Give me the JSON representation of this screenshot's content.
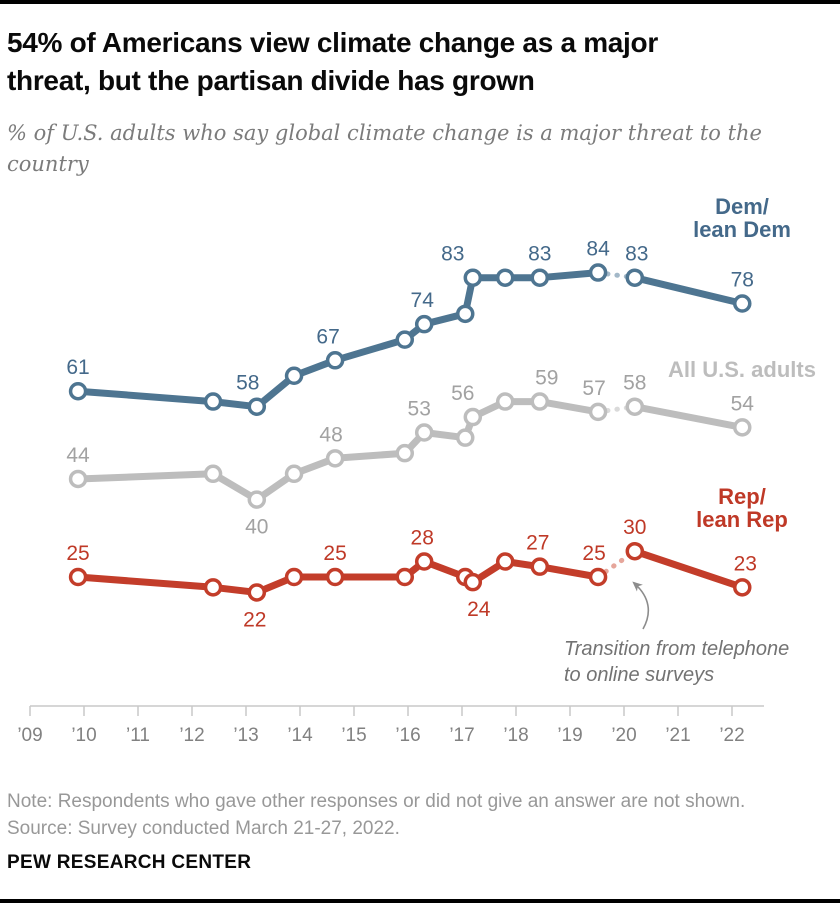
{
  "page": {
    "title_lines": [
      "54% of Americans view climate change as a major",
      "threat, but the partisan divide has grown"
    ],
    "subtitle_lines": [
      "% of U.S. adults who say global climate change is a major threat to the",
      "country"
    ],
    "note": "Note: Respondents who gave other responses or did not give an answer are not shown.",
    "source": "Source: Survey conducted March 21-27, 2022.",
    "brand": "PEW RESEARCH CENTER"
  },
  "chart_data": {
    "type": "line",
    "x": [
      2009.89,
      2012.39,
      2013.2,
      2013.89,
      2014.65,
      2015.94,
      2016.3,
      2017.06,
      2017.2,
      2017.8,
      2018.44,
      2019.52,
      2020.2,
      2022.19
    ],
    "xtick_labels": [
      "’09",
      "’10",
      "’11",
      "’12",
      "’13",
      "’14",
      "’15",
      "’16",
      "’17",
      "’18",
      "’19",
      "’20",
      "’21",
      "’22"
    ],
    "xlim": [
      2009,
      2022.6
    ],
    "ylim": [
      0,
      100
    ],
    "grid": false,
    "legend_position": "right-inline",
    "dashed_segment": {
      "from_index": 11,
      "to_index": 12
    },
    "annotation": {
      "lines": [
        "Transition from telephone",
        "to online surveys"
      ]
    },
    "series": [
      {
        "name": "Dem/lean Dem",
        "legend_lines": [
          "Dem/",
          "lean Dem"
        ],
        "color_line": "#4e7591",
        "color_text": "#44698a",
        "color_dash": "#a3b8c8",
        "values": [
          61,
          59,
          58,
          64,
          67,
          71,
          74,
          76,
          83,
          83,
          83,
          84,
          83,
          78
        ],
        "point_labels": [
          {
            "index": 0,
            "text": "61",
            "side": "above",
            "dx": 0
          },
          {
            "index": 2,
            "text": "58",
            "side": "above",
            "dx": -9
          },
          {
            "index": 4,
            "text": "67",
            "side": "above",
            "dx": -7
          },
          {
            "index": 6,
            "text": "74",
            "side": "above",
            "dx": -2
          },
          {
            "index": 8,
            "text": "83",
            "side": "above",
            "dx": -20
          },
          {
            "index": 10,
            "text": "83",
            "side": "above",
            "dx": 0
          },
          {
            "index": 11,
            "text": "84",
            "side": "above",
            "dx": 0
          },
          {
            "index": 12,
            "text": "83",
            "side": "above",
            "dx": 2
          },
          {
            "index": 13,
            "text": "78",
            "side": "above",
            "dx": 0
          }
        ]
      },
      {
        "name": "All U.S. adults",
        "legend_lines": [
          "All U.S. adults"
        ],
        "color_line": "#bdbdbd",
        "color_text": "#a2a2a2",
        "color_dash": "#dadada",
        "values": [
          44,
          45,
          40,
          45,
          48,
          49,
          53,
          52,
          56,
          59,
          59,
          57,
          58,
          54
        ],
        "point_labels": [
          {
            "index": 0,
            "text": "44",
            "side": "above",
            "dx": 0
          },
          {
            "index": 2,
            "text": "40",
            "side": "below",
            "dx": 0
          },
          {
            "index": 4,
            "text": "48",
            "side": "above",
            "dx": -4
          },
          {
            "index": 6,
            "text": "53",
            "side": "above",
            "dx": -5
          },
          {
            "index": 8,
            "text": "56",
            "side": "above",
            "dx": -10
          },
          {
            "index": 10,
            "text": "59",
            "side": "above",
            "dx": 7
          },
          {
            "index": 11,
            "text": "57",
            "side": "above",
            "dx": -4
          },
          {
            "index": 12,
            "text": "58",
            "side": "above",
            "dx": 0
          },
          {
            "index": 13,
            "text": "54",
            "side": "above",
            "dx": 0
          }
        ]
      },
      {
        "name": "Rep/lean Rep",
        "legend_lines": [
          "Rep/",
          "lean Rep"
        ],
        "color_line": "#c33d2a",
        "color_text": "#bf3927",
        "color_dash": "#e6a69b",
        "values": [
          25,
          23,
          22,
          25,
          25,
          25,
          28,
          25,
          24,
          28,
          27,
          25,
          30,
          23
        ],
        "point_labels": [
          {
            "index": 0,
            "text": "25",
            "side": "above",
            "dx": 0
          },
          {
            "index": 2,
            "text": "22",
            "side": "below",
            "dx": -2
          },
          {
            "index": 4,
            "text": "25",
            "side": "above",
            "dx": 0
          },
          {
            "index": 6,
            "text": "28",
            "side": "above",
            "dx": -2
          },
          {
            "index": 8,
            "text": "24",
            "side": "below",
            "dx": 6
          },
          {
            "index": 10,
            "text": "27",
            "side": "above",
            "dx": -2
          },
          {
            "index": 11,
            "text": "25",
            "side": "above",
            "dx": -4
          },
          {
            "index": 12,
            "text": "30",
            "side": "above",
            "dx": 0
          },
          {
            "index": 13,
            "text": "23",
            "side": "above",
            "dx": 3
          }
        ]
      }
    ]
  }
}
